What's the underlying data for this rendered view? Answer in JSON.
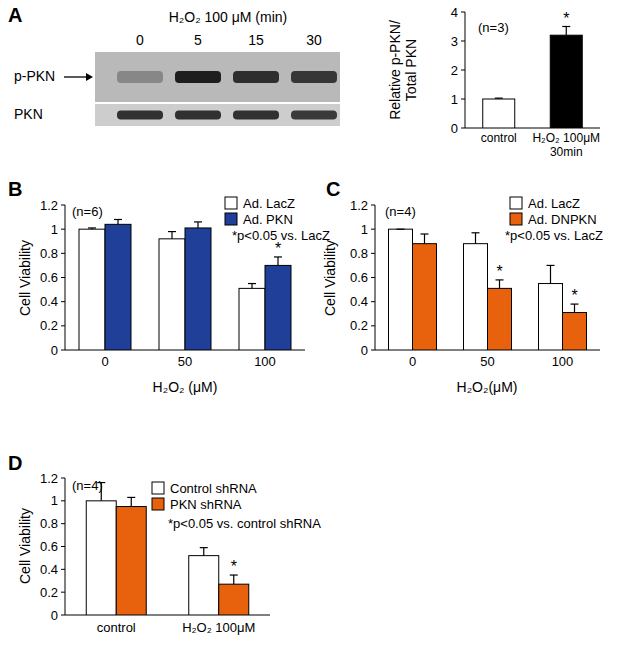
{
  "chart_data": [
    {
      "type": "blot",
      "panel": "A",
      "title": "H₂O₂ 100 μM (min)",
      "categories": [
        "0",
        "5",
        "15",
        "30"
      ],
      "series": [
        {
          "name": "p-PKN",
          "values": [
            0.3,
            0.95,
            0.85,
            0.8
          ]
        },
        {
          "name": "PKN",
          "values": [
            0.85,
            0.85,
            0.85,
            0.8
          ]
        }
      ]
    },
    {
      "type": "bar",
      "y_label": "Relative p-PKN/\nTotal PKN",
      "categories": [
        "control",
        "H₂O₂ 100μM\n30min"
      ],
      "values": [
        1,
        3.2
      ],
      "errors": [
        0.03,
        0.3
      ],
      "colors": [
        "#ffffff",
        "#000000"
      ],
      "significance": [
        null,
        "*"
      ],
      "ylim": [
        0,
        4
      ],
      "yticks": [
        0,
        1,
        2,
        3,
        4
      ],
      "annotations": [
        "(n=3)"
      ]
    },
    {
      "type": "bar",
      "panel": "B",
      "y_label": "Cell Viability",
      "x_label": "H₂O₂ (μM)",
      "categories": [
        "0",
        "50",
        "100"
      ],
      "series": [
        {
          "name": "Ad. LacZ",
          "color": "#ffffff",
          "values": [
            1,
            0.92,
            0.51
          ],
          "errors": [
            0.01,
            0.06,
            0.04
          ],
          "significance": [
            null,
            null,
            null
          ]
        },
        {
          "name": "Ad. PKN",
          "color": "#1f3f99",
          "values": [
            1.04,
            1.01,
            0.7
          ],
          "errors": [
            0.04,
            0.05,
            0.07
          ],
          "significance": [
            null,
            null,
            "*"
          ]
        }
      ],
      "ylim": [
        0,
        1.2
      ],
      "yticks": [
        0,
        0.2,
        0.4,
        0.6,
        0.8,
        1,
        1.2
      ],
      "legend": "upper right",
      "annotations": [
        "(n=6)",
        "*p<0.05 vs. LacZ"
      ]
    },
    {
      "type": "bar",
      "panel": "C",
      "y_label": "Cell Viability",
      "x_label": "H₂O₂(μM)",
      "categories": [
        "0",
        "50",
        "100"
      ],
      "series": [
        {
          "name": "Ad. LacZ",
          "color": "#ffffff",
          "values": [
            1,
            0.88,
            0.55
          ],
          "errors": [
            0,
            0.09,
            0.15
          ],
          "significance": [
            null,
            null,
            null
          ]
        },
        {
          "name": "Ad. DNPKN",
          "color": "#e8620e",
          "values": [
            0.88,
            0.51,
            0.31
          ],
          "errors": [
            0.08,
            0.07,
            0.07
          ],
          "significance": [
            null,
            "*",
            "*"
          ]
        }
      ],
      "ylim": [
        0,
        1.2
      ],
      "yticks": [
        0,
        0.2,
        0.4,
        0.6,
        0.8,
        1,
        1.2
      ],
      "legend": "upper right",
      "annotations": [
        "(n=4)",
        "*p<0.05 vs. LacZ"
      ]
    },
    {
      "type": "bar",
      "panel": "D",
      "y_label": "Cell Viability",
      "categories": [
        "control",
        "H₂O₂ 100μM"
      ],
      "series": [
        {
          "name": "Control shRNA",
          "color": "#ffffff",
          "values": [
            1,
            0.52
          ],
          "errors": [
            0.16,
            0.07
          ],
          "significance": [
            null,
            null
          ]
        },
        {
          "name": "PKN shRNA",
          "color": "#e8620e",
          "values": [
            0.95,
            0.27
          ],
          "errors": [
            0.08,
            0.08
          ],
          "significance": [
            null,
            "*"
          ]
        }
      ],
      "ylim": [
        0,
        1.2
      ],
      "yticks": [
        0,
        0.2,
        0.4,
        0.6,
        0.8,
        1,
        1.2
      ],
      "legend": "upper right",
      "annotations": [
        "(n=4)",
        "*p<0.05 vs. control shRNA"
      ]
    }
  ]
}
